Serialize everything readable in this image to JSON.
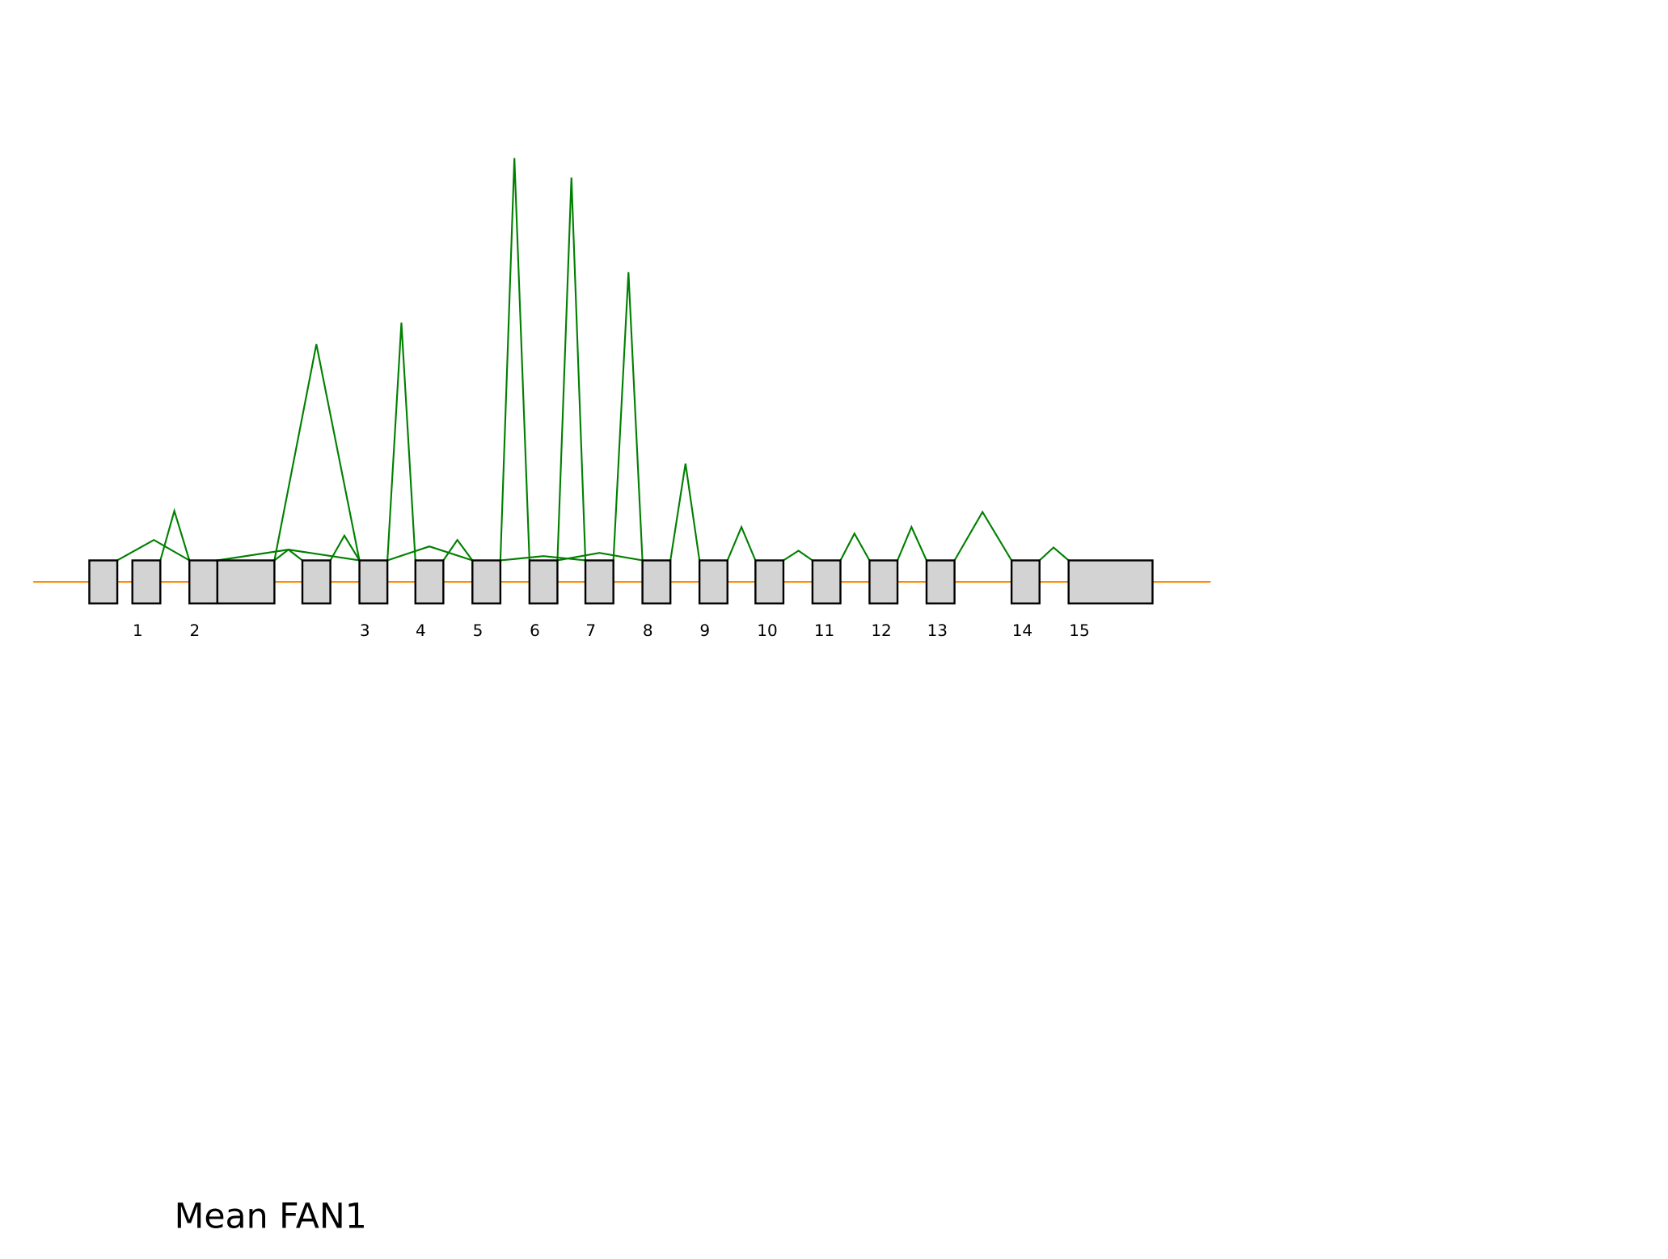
{
  "title": "Mean FAN1",
  "exon_labels": [
    "1",
    "2",
    "3",
    "4",
    "5",
    "6",
    "7",
    "8",
    "9",
    "10",
    "11",
    "12",
    "13",
    "14",
    "15"
  ]
}
